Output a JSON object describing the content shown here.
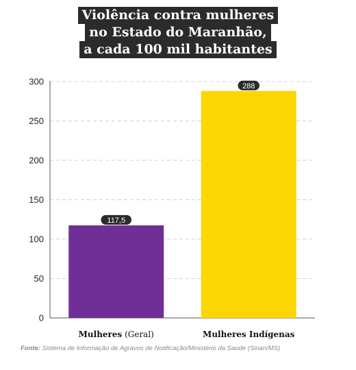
{
  "chart_data": {
    "type": "bar",
    "title_lines": [
      "Violência contra mulheres",
      "no Estado do Maranhão,",
      "a cada 100 mil habitantes"
    ],
    "categories": [
      {
        "bold": "Mulheres",
        "rest": " (Geral)"
      },
      {
        "bold": "Mulheres Indígenas",
        "rest": ""
      }
    ],
    "values": [
      117.5,
      288
    ],
    "value_labels": [
      "117,5",
      "288"
    ],
    "colors": [
      "#702f96",
      "#fcd600"
    ],
    "ylim": [
      0,
      300
    ],
    "yticks": [
      0,
      50,
      100,
      150,
      200,
      250,
      300
    ],
    "grid": true,
    "xlabel": "",
    "ylabel": ""
  },
  "source": {
    "label": "Fonte:",
    "text": " Sistema de Informação de Agravos de Notificação/Ministério da Saúde (Sinan/MS)"
  }
}
